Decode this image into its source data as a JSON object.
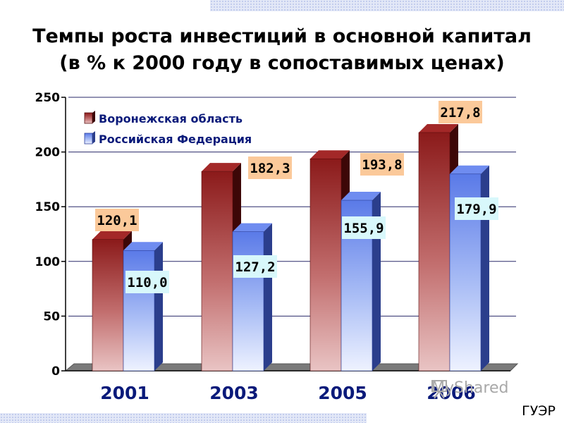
{
  "title_line1": "Темпы роста  инвестиций в основной капитал",
  "title_line2": "(в % к 2000 году в сопоставимых ценах)",
  "watermark": "MyShared",
  "footer": "ГУЭР",
  "colors": {
    "series1": "#8b1a1a",
    "series2": "#5a7ae8",
    "label1_bg": "#fbc99a",
    "label2_bg": "#d8f8fb",
    "grid": "#2a2a6a"
  },
  "chart_data": {
    "type": "bar",
    "categories": [
      "2001",
      "2003",
      "2005",
      "2006"
    ],
    "series": [
      {
        "name": "Воронежская область",
        "values": [
          120.1,
          182.3,
          193.8,
          217.8
        ],
        "labels": [
          "120,1",
          "182,3",
          "193,8",
          "217,8"
        ]
      },
      {
        "name": "Российская Федерация",
        "values": [
          110.0,
          127.2,
          155.9,
          179.9
        ],
        "labels": [
          "110,0",
          "127,2",
          "155,9",
          "179,9"
        ]
      }
    ],
    "yticks": [
      0,
      50,
      100,
      150,
      200,
      250
    ],
    "ylim": [
      0,
      250
    ],
    "legend": "top-left",
    "grid": true
  }
}
